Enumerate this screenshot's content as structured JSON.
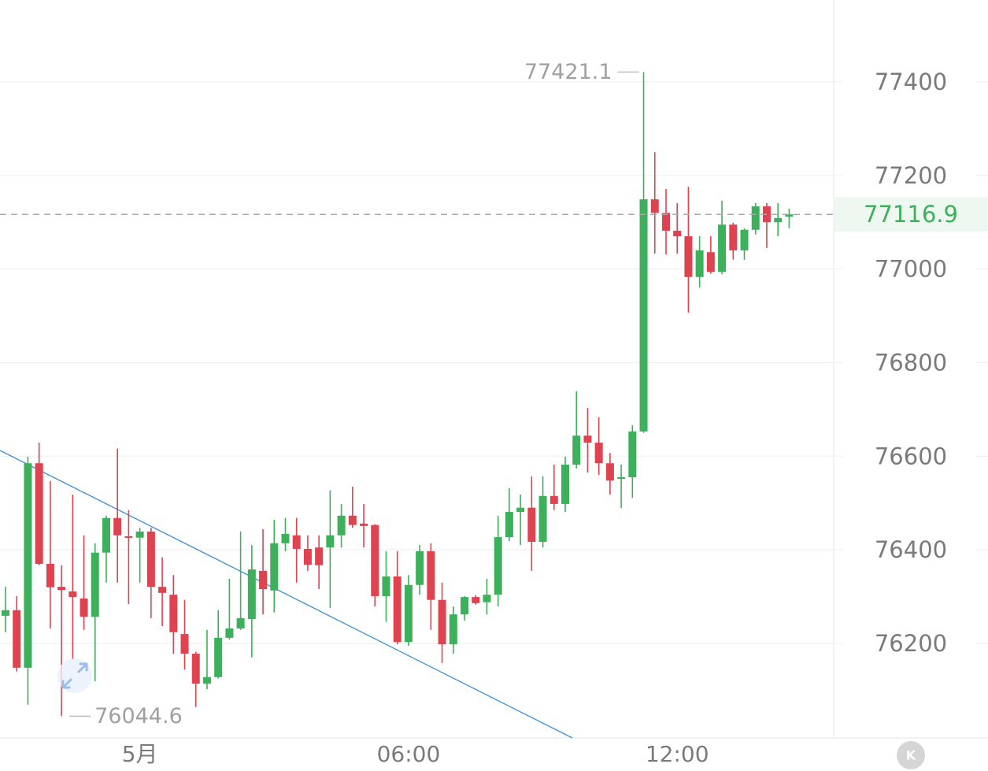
{
  "chart_data": {
    "type": "candlestick",
    "categories": [
      null,
      null,
      null,
      null,
      null,
      null,
      null,
      null,
      null,
      null,
      null,
      null,
      "5月",
      null,
      null,
      null,
      null,
      null,
      null,
      null,
      null,
      null,
      null,
      null,
      null,
      null,
      null,
      null,
      null,
      null,
      null,
      null,
      null,
      null,
      null,
      null,
      "06:00",
      null,
      null,
      null,
      null,
      null,
      null,
      null,
      null,
      null,
      null,
      null,
      null,
      null,
      null,
      null,
      null,
      null,
      null,
      null,
      null,
      null,
      null,
      null,
      "12:00",
      null,
      null,
      null,
      null,
      null,
      null,
      null,
      null,
      null,
      null
    ],
    "open": [
      76259,
      76271,
      76148,
      76585,
      76370,
      76321,
      76311,
      76296,
      76257,
      76394,
      76468,
      76429,
      76426,
      76439,
      76321,
      76304,
      76220,
      76178,
      76114,
      76128,
      76212,
      76232,
      76252,
      76355,
      76313,
      76414,
      76431,
      76402,
      76405,
      76405,
      76431,
      76473,
      76456,
      76453,
      76301,
      76343,
      76203,
      76325,
      76397,
      76293,
      76198,
      76262,
      76299,
      76288,
      76304,
      76427,
      76481,
      76490,
      76417,
      76515,
      76498,
      76582,
      76644,
      76629,
      76585,
      76552,
      76555,
      76653,
      77149,
      77120,
      77082,
      77070,
      76983,
      77036,
      76994,
      77095,
      77040,
      77084,
      77134,
      77100,
      77112
    ],
    "high": [
      76321,
      76301,
      76599,
      76629,
      76547,
      76367,
      76518,
      76431,
      76414,
      76473,
      76616,
      76485,
      76447,
      76447,
      76384,
      76346,
      76293,
      76182,
      76229,
      76271,
      76338,
      76439,
      76410,
      76444,
      76464,
      76468,
      76468,
      76431,
      76431,
      76527,
      76498,
      76535,
      76498,
      76455,
      76397,
      76397,
      76346,
      76410,
      76414,
      76330,
      76279,
      76301,
      76303,
      76338,
      76473,
      76532,
      76518,
      76557,
      76557,
      76582,
      76599,
      76739,
      76703,
      76683,
      76607,
      76582,
      76666,
      77421.1,
      77250,
      77171,
      77141,
      77176,
      77070,
      77070,
      77146,
      77099,
      77087,
      77141,
      77141,
      77141,
      77129
    ],
    "low": [
      76224,
      76140,
      76069,
      76367,
      76232,
      76044.6,
      76165,
      76229,
      76119,
      76330,
      76330,
      76284,
      76330,
      76254,
      76237,
      76178,
      76144,
      76064,
      76102,
      76125,
      76208,
      76229,
      76170,
      76262,
      76266,
      76397,
      76330,
      76355,
      76316,
      76276,
      76405,
      76447,
      76405,
      76279,
      76246,
      76198,
      76195,
      76304,
      76229,
      76158,
      76178,
      76249,
      76283,
      76262,
      76279,
      76419,
      76410,
      76355,
      76405,
      76485,
      76481,
      76574,
      76565,
      76560,
      76518,
      76489,
      76511,
      76650,
      77033,
      77031,
      77033,
      76907,
      76961,
      76990,
      76989,
      77020,
      77020,
      77074,
      77045,
      77070,
      77087
    ],
    "close": [
      76271,
      76148,
      76585,
      76370,
      76320,
      76314,
      76299,
      76257,
      76394,
      76468,
      76431,
      76426,
      76439,
      76321,
      76308,
      76224,
      76178,
      76114,
      76128,
      76212,
      76232,
      76254,
      76358,
      76316,
      76414,
      76434,
      76402,
      76368,
      76367,
      76431,
      76473,
      76453,
      76451,
      76301,
      76343,
      76203,
      76325,
      76397,
      76293,
      76198,
      76262,
      76299,
      76286,
      76304,
      76427,
      76481,
      76490,
      76417,
      76515,
      76498,
      76582,
      76644,
      76629,
      76585,
      76548,
      76555,
      76653,
      77149,
      77120,
      77082,
      77070,
      76983,
      77040,
      76994,
      77095,
      77040,
      77084,
      77134,
      77100,
      77109,
      77116.9
    ],
    "up_color": "#3cb05a",
    "down_color": "#e0424f",
    "ylim": [
      75998,
      77575
    ],
    "yticks": [
      76200,
      76400,
      76600,
      76800,
      77000,
      77200,
      77400
    ],
    "grid": true
  },
  "ui": {
    "logo": "K"
  }
}
